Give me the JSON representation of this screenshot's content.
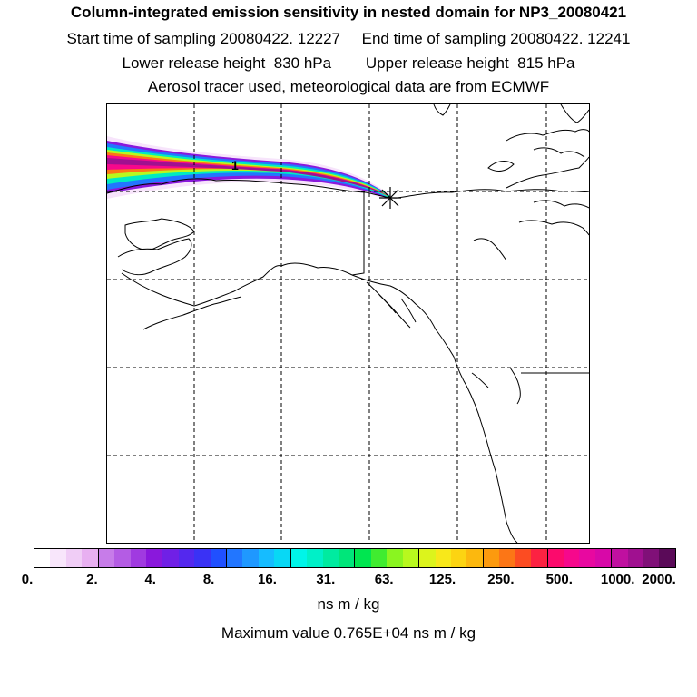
{
  "header": {
    "title": "Column-integrated emission sensitivity in nested domain for NP3_20080421",
    "line2": "Start time of sampling 20080422. 12227     End time of sampling 20080422. 12241",
    "line3": "Lower release height  830 hPa        Upper release height  815 hPa",
    "line4": "Aerosol tracer used, meteorological data are from ECMWF"
  },
  "map": {
    "contour_label": "1",
    "release_marker": "star-icon"
  },
  "colorbar": {
    "colors": [
      "#ffffff",
      "#f8e6fb",
      "#f0cdf6",
      "#e8b0f1",
      "#c77ce9",
      "#b45ce4",
      "#a03ae0",
      "#8a18dc",
      "#7020e6",
      "#5428ee",
      "#3a32f5",
      "#2050ff",
      "#2276ff",
      "#1f98ff",
      "#16bcff",
      "#08d8f5",
      "#00f5e9",
      "#00f0c8",
      "#00eba0",
      "#00e67a",
      "#00e650",
      "#40ec30",
      "#8af520",
      "#b8f81e",
      "#dcf41c",
      "#f8e81a",
      "#fcd412",
      "#fcb80e",
      "#fc9a0e",
      "#fc7616",
      "#fc4c22",
      "#fc2242",
      "#fc0a6c",
      "#f6088c",
      "#e808a0",
      "#d808a8",
      "#c010a0",
      "#a01090",
      "#801078",
      "#5a0a58"
    ],
    "tick_labels": [
      "0.",
      "2.",
      "4.",
      "8.",
      "16.",
      "31.",
      "63.",
      "125.",
      "250.",
      "500.",
      "1000.",
      "2000."
    ],
    "unit": "ns m / kg"
  },
  "footer": {
    "max_value": "Maximum value  0.765E+04 ns m / kg"
  }
}
